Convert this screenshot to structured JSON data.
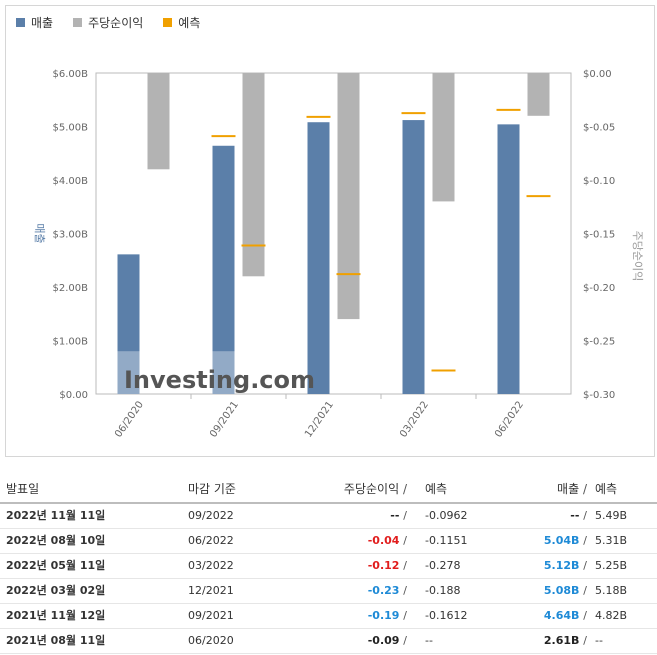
{
  "legend": {
    "revenue": "매출",
    "eps": "주당순이익",
    "forecast": "예측"
  },
  "colors": {
    "revenue": "#5b7fa9",
    "revenue_forecast_band": "#a9bcd3",
    "eps": "#b3b3b3",
    "forecast": "#f0a000"
  },
  "watermark": "Investing.com",
  "chart_data": {
    "type": "bar",
    "categories": [
      "06/2020",
      "09/2021",
      "12/2021",
      "03/2022",
      "06/2022"
    ],
    "left_axis": {
      "label": "매출",
      "ylim": [
        0,
        6
      ],
      "ticks": [
        "$0.00",
        "$1.00B",
        "$2.00B",
        "$3.00B",
        "$4.00B",
        "$5.00B",
        "$6.00B"
      ]
    },
    "right_axis": {
      "label": "주당순이익",
      "ylim": [
        0,
        -0.3
      ],
      "ticks": [
        "$0.00",
        "$-0.05",
        "$-0.10",
        "$-0.15",
        "$-0.20",
        "$-0.25",
        "$-0.30"
      ]
    },
    "series": [
      {
        "name": "매출",
        "axis": "left",
        "values": [
          2.61,
          4.64,
          5.08,
          5.12,
          5.04
        ]
      },
      {
        "name": "주당순이익",
        "axis": "right",
        "values": [
          -0.09,
          -0.19,
          -0.23,
          -0.12,
          -0.04
        ]
      },
      {
        "name": "예측",
        "kind": "revenue_forecast",
        "axis": "left",
        "values": [
          null,
          4.82,
          5.18,
          5.25,
          5.31
        ]
      },
      {
        "name": "예측",
        "kind": "eps_forecast",
        "axis": "right",
        "values": [
          null,
          -0.1612,
          -0.188,
          -0.278,
          -0.1151
        ]
      }
    ],
    "grid": false,
    "legend_position": "top-left"
  },
  "table": {
    "headers": {
      "date": "발표일",
      "period": "마감 기준",
      "eps": "주당순이익",
      "eps_forecast": "예측",
      "revenue": "매출",
      "revenue_forecast": "예측",
      "sep": "/"
    },
    "rows": [
      {
        "date": "2022년 11월 11일",
        "period": "09/2022",
        "eps": "--",
        "eps_forecast": "-0.0962",
        "revenue": "--",
        "revenue_forecast": "5.49B",
        "eps_color": "plain",
        "rev_color": "plain"
      },
      {
        "date": "2022년 08월 10일",
        "period": "06/2022",
        "eps": "-0.04",
        "eps_forecast": "-0.1151",
        "revenue": "5.04B",
        "revenue_forecast": "5.31B",
        "eps_color": "neg",
        "rev_color": "blue"
      },
      {
        "date": "2022년 05월 11일",
        "period": "03/2022",
        "eps": "-0.12",
        "eps_forecast": "-0.278",
        "revenue": "5.12B",
        "revenue_forecast": "5.25B",
        "eps_color": "neg",
        "rev_color": "blue"
      },
      {
        "date": "2022년 03월 02일",
        "period": "12/2021",
        "eps": "-0.23",
        "eps_forecast": "-0.188",
        "revenue": "5.08B",
        "revenue_forecast": "5.18B",
        "eps_color": "blue",
        "rev_color": "blue"
      },
      {
        "date": "2021년 11월 12일",
        "period": "09/2021",
        "eps": "-0.19",
        "eps_forecast": "-0.1612",
        "revenue": "4.64B",
        "revenue_forecast": "4.82B",
        "eps_color": "blue",
        "rev_color": "blue"
      },
      {
        "date": "2021년 08월 11일",
        "period": "06/2020",
        "eps": "-0.09",
        "eps_forecast": "--",
        "revenue": "2.61B",
        "revenue_forecast": "--",
        "eps_color": "plain",
        "rev_color": "plain"
      }
    ]
  }
}
